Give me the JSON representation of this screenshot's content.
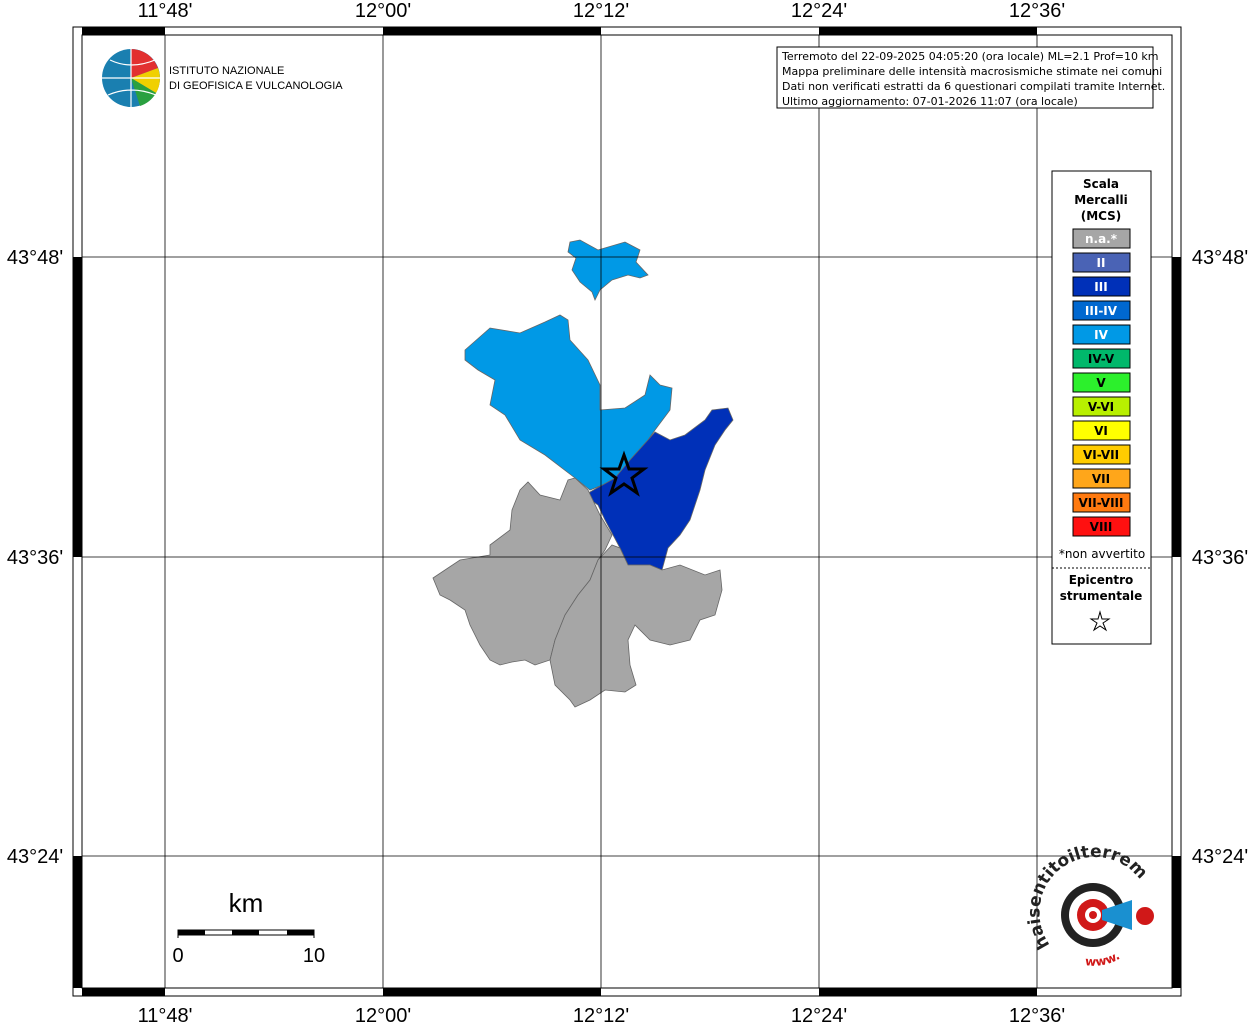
{
  "map": {
    "graticule": {
      "lon_labels": [
        "11°48'",
        "12°00'",
        "12°12'",
        "12°24'",
        "12°36'"
      ],
      "lat_labels": [
        "43°48'",
        "43°36'",
        "43°24'"
      ]
    },
    "logo": {
      "lines": [
        "ISTITUTO NAZIONALE",
        "DI GEOFISICA E VULCANOLOGIA"
      ]
    },
    "info_box": {
      "lines": [
        "Terremoto del 22-09-2025 04:05:20 (ora locale) ML=2.1 Prof=10 km",
        "Mappa preliminare delle intensità macrosismiche stimate nei comuni",
        "Dati non verificati estratti da 6 questionari compilati tramite Internet.",
        "Ultimo aggiornamento: 07-01-2026 11:07 (ora locale)"
      ]
    },
    "legend": {
      "title": [
        "Scala",
        "Mercalli",
        "(MCS)"
      ],
      "items": [
        {
          "label": "n.a.*",
          "color": "#a6a6a6"
        },
        {
          "label": "II",
          "color": "#4a63b5"
        },
        {
          "label": "III",
          "color": "#0030b8"
        },
        {
          "label": "III-IV",
          "color": "#0068d0"
        },
        {
          "label": "IV",
          "color": "#0099e6"
        },
        {
          "label": "IV-V",
          "color": "#00b86b"
        },
        {
          "label": "V",
          "color": "#2cf02c"
        },
        {
          "label": "V-VI",
          "color": "#b8f000"
        },
        {
          "label": "VI",
          "color": "#ffff00"
        },
        {
          "label": "VI-VII",
          "color": "#ffcc00"
        },
        {
          "label": "VII",
          "color": "#ffa61a"
        },
        {
          "label": "VII-VIII",
          "color": "#ff7a10"
        },
        {
          "label": "VIII",
          "color": "#ff1010"
        }
      ],
      "note": "*non avvertito",
      "epicenter_title": [
        "Epicentro",
        "strumentale"
      ]
    },
    "scale_bar": {
      "unit": "km",
      "labels": [
        "0",
        "10"
      ]
    },
    "site_logo": {
      "text": "haisentitoilterremoto.it",
      "prefix": "www."
    }
  }
}
